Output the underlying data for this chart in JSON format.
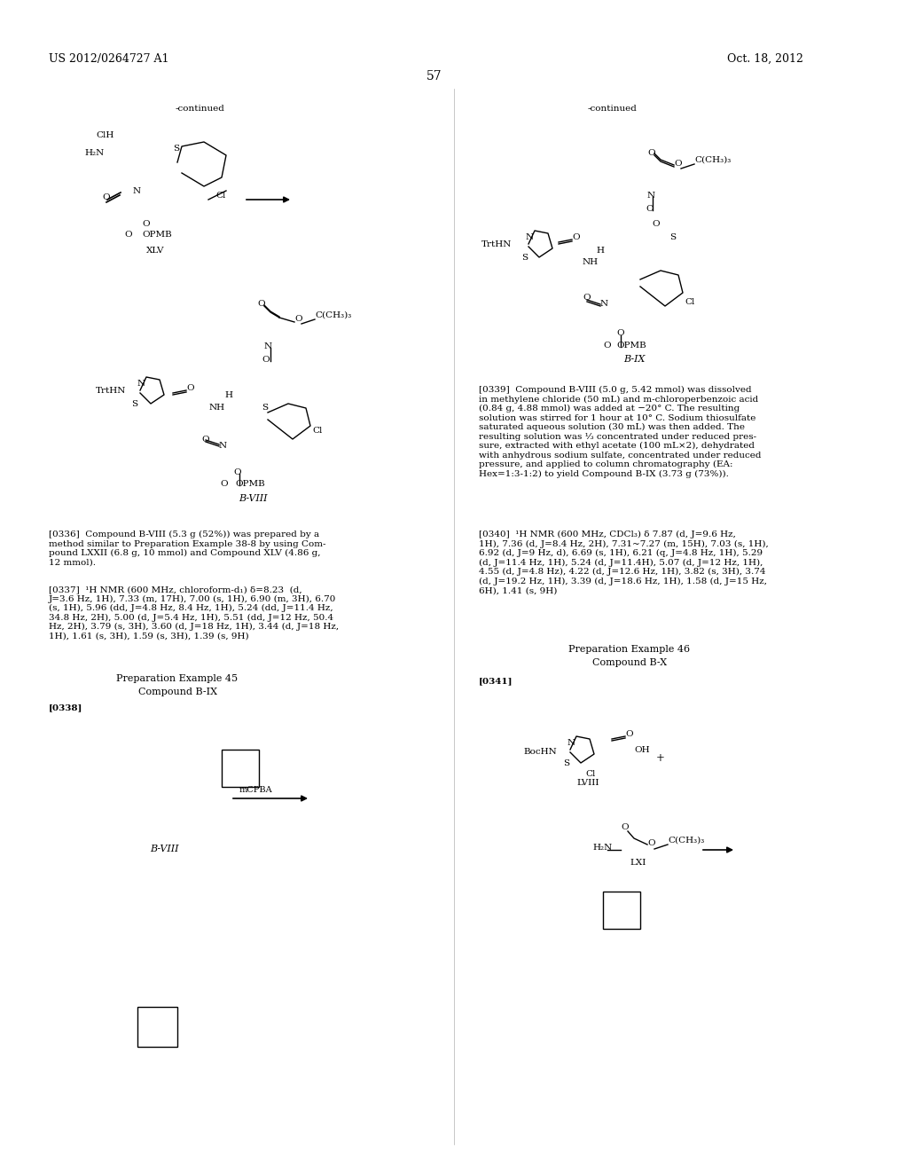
{
  "page_number": "57",
  "patent_left": "US 2012/0264727 A1",
  "patent_right": "Oct. 18, 2012",
  "background_color": "#ffffff",
  "text_color": "#000000",
  "font_size_header": 9,
  "font_size_body": 7.5,
  "font_size_label": 8
}
